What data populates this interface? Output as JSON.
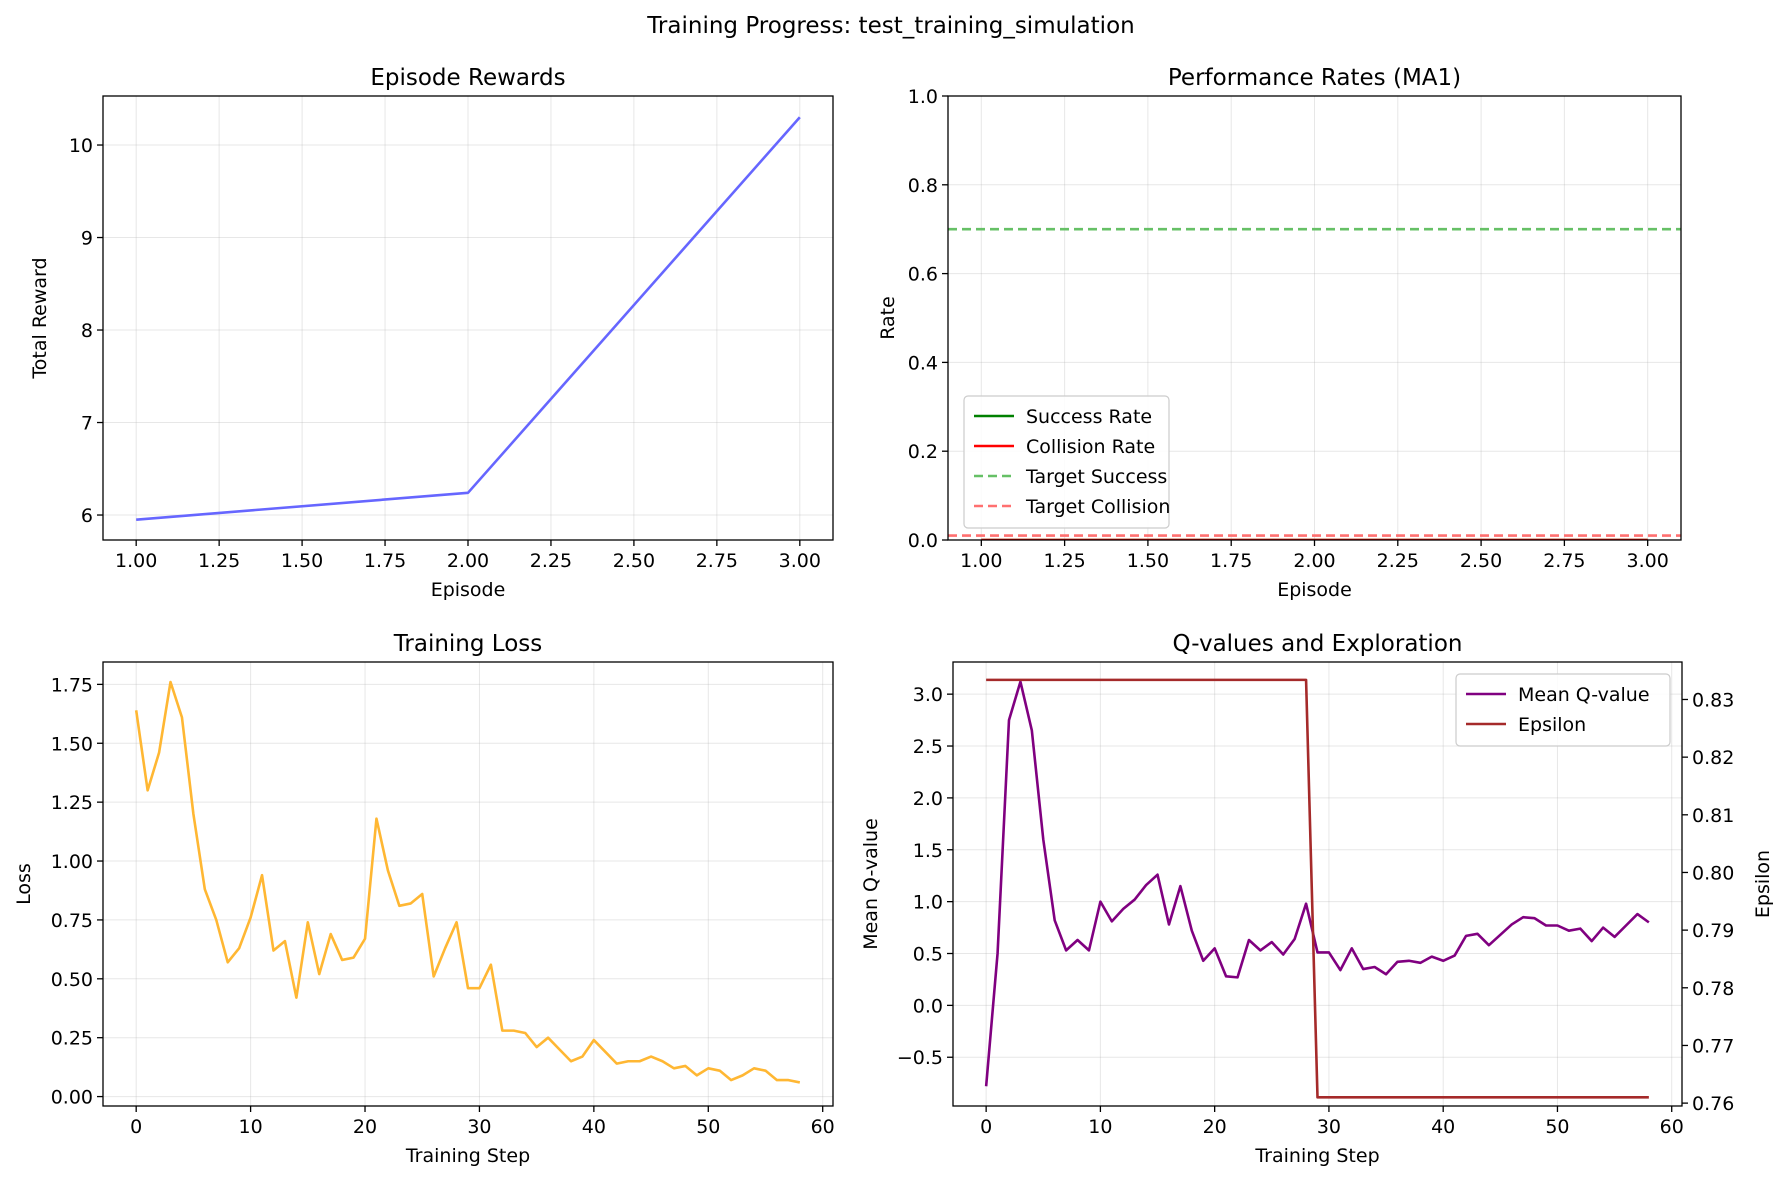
{
  "figure": {
    "title": "Training Progress: test_training_simulation"
  },
  "chart_data": [
    {
      "id": "rewards",
      "type": "line",
      "title": "Episode Rewards",
      "xlabel": "Episode",
      "ylabel": "Total Reward",
      "xlim": [
        0.9,
        3.1
      ],
      "ylim": [
        5.73,
        10.53
      ],
      "xticks": [
        1.0,
        1.25,
        1.5,
        1.75,
        2.0,
        2.25,
        2.5,
        2.75,
        3.0
      ],
      "xtick_labels": [
        "1.00",
        "1.25",
        "1.50",
        "1.75",
        "2.00",
        "2.25",
        "2.50",
        "2.75",
        "3.00"
      ],
      "yticks": [
        6,
        7,
        8,
        9,
        10
      ],
      "ytick_labels": [
        "6",
        "7",
        "8",
        "9",
        "10"
      ],
      "grid": true,
      "series": [
        {
          "x": [
            1,
            2,
            3
          ],
          "values": [
            5.95,
            6.24,
            10.3
          ],
          "color": "#6666ff",
          "dash": ""
        }
      ]
    },
    {
      "id": "rates",
      "type": "line",
      "title": "Performance Rates (MA1)",
      "xlabel": "Episode",
      "ylabel": "Rate",
      "xlim": [
        0.9,
        3.1
      ],
      "ylim": [
        0,
        1
      ],
      "xticks": [
        1.0,
        1.25,
        1.5,
        1.75,
        2.0,
        2.25,
        2.5,
        2.75,
        3.0
      ],
      "xtick_labels": [
        "1.00",
        "1.25",
        "1.50",
        "1.75",
        "2.00",
        "2.25",
        "2.50",
        "2.75",
        "3.00"
      ],
      "yticks": [
        0,
        0.2,
        0.4,
        0.6,
        0.8,
        1.0
      ],
      "ytick_labels": [
        "0.0",
        "0.2",
        "0.4",
        "0.6",
        "0.8",
        "1.0"
      ],
      "grid": true,
      "legend_position": "lower-left",
      "series": [
        {
          "name": "Success Rate",
          "x": [
            1,
            2,
            3
          ],
          "values": [
            0,
            0,
            0
          ],
          "color": "#008000",
          "dash": ""
        },
        {
          "name": "Collision Rate",
          "x": [
            1,
            2,
            3
          ],
          "values": [
            0,
            0,
            0
          ],
          "color": "#ff0000",
          "dash": ""
        },
        {
          "name": "Target Success",
          "x": [
            0.9,
            3.1
          ],
          "values": [
            0.7,
            0.7
          ],
          "color": "#66c066",
          "dash": "9,5"
        },
        {
          "name": "Target Collision",
          "x": [
            0.9,
            3.1
          ],
          "values": [
            0.01,
            0.01
          ],
          "color": "#ff7070",
          "dash": "9,5"
        }
      ]
    },
    {
      "id": "loss",
      "type": "line",
      "title": "Training Loss",
      "xlabel": "Training Step",
      "ylabel": "Loss",
      "xlim": [
        -2.9,
        60.9
      ],
      "ylim": [
        -0.04,
        1.845
      ],
      "xticks": [
        0,
        10,
        20,
        30,
        40,
        50,
        60
      ],
      "xtick_labels": [
        "0",
        "10",
        "20",
        "30",
        "40",
        "50",
        "60"
      ],
      "yticks": [
        0,
        0.25,
        0.5,
        0.75,
        1.0,
        1.25,
        1.5,
        1.75
      ],
      "ytick_labels": [
        "0.00",
        "0.25",
        "0.50",
        "0.75",
        "1.00",
        "1.25",
        "1.50",
        "1.75"
      ],
      "grid": true,
      "series": [
        {
          "color": "#ffb733",
          "dash": "",
          "values": [
            1.64,
            1.3,
            1.46,
            1.76,
            1.61,
            1.2,
            0.88,
            0.75,
            0.57,
            0.63,
            0.76,
            0.94,
            0.62,
            0.66,
            0.42,
            0.74,
            0.52,
            0.69,
            0.58,
            0.59,
            0.67,
            1.18,
            0.96,
            0.81,
            0.82,
            0.86,
            0.51,
            0.63,
            0.74,
            0.46,
            0.46,
            0.56,
            0.28,
            0.28,
            0.27,
            0.21,
            0.25,
            0.2,
            0.15,
            0.17,
            0.24,
            0.19,
            0.14,
            0.15,
            0.15,
            0.17,
            0.15,
            0.12,
            0.13,
            0.09,
            0.12,
            0.11,
            0.07,
            0.09,
            0.12,
            0.11,
            0.07,
            0.07,
            0.06
          ]
        }
      ]
    },
    {
      "id": "qvalues",
      "type": "line",
      "title": "Q-values and Exploration",
      "xlabel": "Training Step",
      "ylabel": "Mean Q-value",
      "ylabel_color": "#800080",
      "y2label": "Epsilon",
      "y2label_color": "#b22222",
      "xlim": [
        -2.9,
        60.9
      ],
      "ylim": [
        -0.97,
        3.31
      ],
      "y2lim": [
        0.7595,
        0.8365
      ],
      "xticks": [
        0,
        10,
        20,
        30,
        40,
        50,
        60
      ],
      "xtick_labels": [
        "0",
        "10",
        "20",
        "30",
        "40",
        "50",
        "60"
      ],
      "yticks": [
        -0.5,
        0,
        0.5,
        1.0,
        1.5,
        2.0,
        2.5,
        3.0
      ],
      "ytick_labels": [
        "−0.5",
        "0.0",
        "0.5",
        "1.0",
        "1.5",
        "2.0",
        "2.5",
        "3.0"
      ],
      "y2ticks": [
        0.76,
        0.77,
        0.78,
        0.79,
        0.8,
        0.81,
        0.82,
        0.83
      ],
      "y2tick_labels": [
        "0.76",
        "0.77",
        "0.78",
        "0.79",
        "0.80",
        "0.81",
        "0.82",
        "0.83"
      ],
      "grid": true,
      "legend_position": "upper-right",
      "series": [
        {
          "name": "Mean Q-value",
          "axis": "left",
          "color": "#800080",
          "dash": "",
          "values": [
            -0.78,
            0.5,
            2.75,
            3.12,
            2.65,
            1.6,
            0.82,
            0.53,
            0.63,
            0.53,
            1.0,
            0.81,
            0.93,
            1.02,
            1.16,
            1.26,
            0.78,
            1.15,
            0.72,
            0.43,
            0.55,
            0.28,
            0.27,
            0.63,
            0.53,
            0.61,
            0.49,
            0.64,
            0.98,
            0.51,
            0.51,
            0.34,
            0.55,
            0.35,
            0.37,
            0.3,
            0.42,
            0.43,
            0.41,
            0.47,
            0.43,
            0.48,
            0.67,
            0.69,
            0.58,
            0.68,
            0.78,
            0.85,
            0.84,
            0.77,
            0.77,
            0.72,
            0.74,
            0.62,
            0.75,
            0.66,
            0.77,
            0.88,
            0.8
          ]
        },
        {
          "name": "Epsilon",
          "axis": "right",
          "color": "#a52a2a",
          "dash": "",
          "x": [
            0,
            28,
            29,
            58
          ],
          "values": [
            0.8334,
            0.8334,
            0.761,
            0.761
          ]
        }
      ]
    }
  ]
}
